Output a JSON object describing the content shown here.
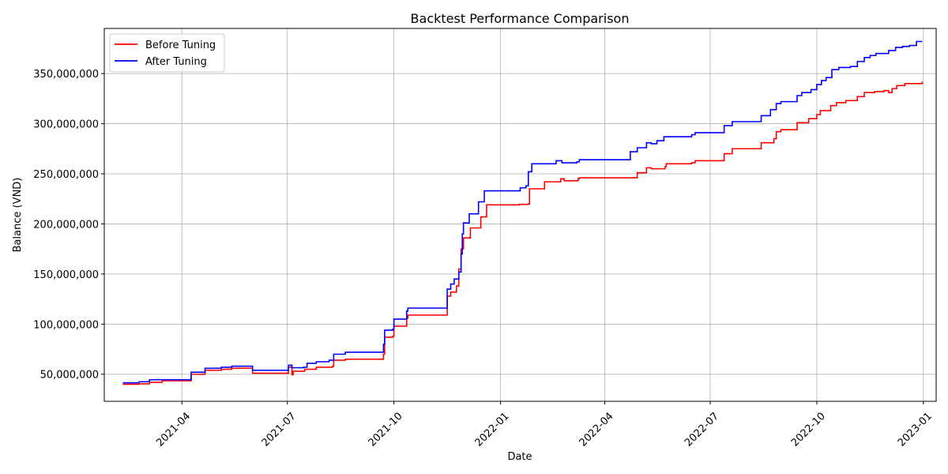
{
  "chart_data": {
    "type": "line",
    "title": "Backtest Performance Comparison",
    "xlabel": "Date",
    "ylabel": "Balance (VND)",
    "grid": true,
    "legend_position": "top-left",
    "xlim": [
      "2021-01-24",
      "2023-01-12"
    ],
    "ylim": [
      23000000,
      395000000
    ],
    "x_ticks": [
      "2021-04-01",
      "2021-07-01",
      "2021-10-01",
      "2022-01-01",
      "2022-04-01",
      "2022-07-01",
      "2022-10-01",
      "2023-01-01"
    ],
    "x_tick_labels": [
      "2021-04",
      "2021-07",
      "2021-10",
      "2022-01",
      "2022-04",
      "2022-07",
      "2022-10",
      "2023-01"
    ],
    "y_ticks": [
      50000000,
      100000000,
      150000000,
      200000000,
      250000000,
      300000000,
      350000000
    ],
    "y_tick_labels": [
      "50,000,000",
      "100,000,000",
      "150,000,000",
      "200,000,000",
      "250,000,000",
      "300,000,000",
      "350,000,000"
    ],
    "series": [
      {
        "name": "Before Tuning",
        "color": "#ff0000",
        "points": [
          [
            "2021-02-09",
            40000000
          ],
          [
            "2021-02-23",
            40500000
          ],
          [
            "2021-03-04",
            42000000
          ],
          [
            "2021-03-15",
            43500000
          ],
          [
            "2021-04-08",
            43500000
          ],
          [
            "2021-04-09",
            50000000
          ],
          [
            "2021-04-21",
            54000000
          ],
          [
            "2021-05-05",
            55000000
          ],
          [
            "2021-05-14",
            56000000
          ],
          [
            "2021-05-31",
            56000000
          ],
          [
            "2021-06-01",
            51000000
          ],
          [
            "2021-07-01",
            51000000
          ],
          [
            "2021-07-02",
            57000000
          ],
          [
            "2021-07-05",
            49500000
          ],
          [
            "2021-07-06",
            53000000
          ],
          [
            "2021-07-15",
            53000000
          ],
          [
            "2021-07-16",
            55000000
          ],
          [
            "2021-07-26",
            57000000
          ],
          [
            "2021-08-09",
            58000000
          ],
          [
            "2021-08-10",
            64000000
          ],
          [
            "2021-08-20",
            65000000
          ],
          [
            "2021-09-20",
            65000000
          ],
          [
            "2021-09-22",
            70000000
          ],
          [
            "2021-09-23",
            87000000
          ],
          [
            "2021-09-30",
            88000000
          ],
          [
            "2021-10-01",
            98000000
          ],
          [
            "2021-10-11",
            98000000
          ],
          [
            "2021-10-12",
            106000000
          ],
          [
            "2021-10-13",
            109000000
          ],
          [
            "2021-11-15",
            109000000
          ],
          [
            "2021-11-16",
            128000000
          ],
          [
            "2021-11-19",
            132000000
          ],
          [
            "2021-11-24",
            138000000
          ],
          [
            "2021-11-26",
            155000000
          ],
          [
            "2021-11-28",
            175000000
          ],
          [
            "2021-11-30",
            186000000
          ],
          [
            "2021-12-06",
            196000000
          ],
          [
            "2021-12-15",
            207000000
          ],
          [
            "2021-12-20",
            219000000
          ],
          [
            "2022-01-17",
            219500000
          ],
          [
            "2022-01-25",
            220000000
          ],
          [
            "2022-01-26",
            235000000
          ],
          [
            "2022-02-08",
            242000000
          ],
          [
            "2022-02-22",
            245000000
          ],
          [
            "2022-02-25",
            243000000
          ],
          [
            "2022-03-09",
            245000000
          ],
          [
            "2022-03-10",
            246000000
          ],
          [
            "2022-04-22",
            246000000
          ],
          [
            "2022-04-29",
            251000000
          ],
          [
            "2022-05-07",
            256000000
          ],
          [
            "2022-05-11",
            255000000
          ],
          [
            "2022-05-23",
            257000000
          ],
          [
            "2022-05-24",
            260000000
          ],
          [
            "2022-06-15",
            261000000
          ],
          [
            "2022-06-18",
            263000000
          ],
          [
            "2022-07-12",
            263000000
          ],
          [
            "2022-07-13",
            270000000
          ],
          [
            "2022-07-20",
            275000000
          ],
          [
            "2022-08-13",
            275000000
          ],
          [
            "2022-08-14",
            281000000
          ],
          [
            "2022-08-25",
            285000000
          ],
          [
            "2022-08-27",
            292000000
          ],
          [
            "2022-08-31",
            294000000
          ],
          [
            "2022-09-13",
            294000000
          ],
          [
            "2022-09-14",
            301000000
          ],
          [
            "2022-09-24",
            305000000
          ],
          [
            "2022-10-01",
            309000000
          ],
          [
            "2022-10-04",
            313000000
          ],
          [
            "2022-10-13",
            318000000
          ],
          [
            "2022-10-18",
            321000000
          ],
          [
            "2022-10-26",
            323000000
          ],
          [
            "2022-11-05",
            327000000
          ],
          [
            "2022-11-11",
            331000000
          ],
          [
            "2022-11-20",
            332000000
          ],
          [
            "2022-11-28",
            333000000
          ],
          [
            "2022-12-02",
            331000000
          ],
          [
            "2022-12-05",
            335000000
          ],
          [
            "2022-12-09",
            338000000
          ],
          [
            "2022-12-16",
            340000000
          ],
          [
            "2022-12-31",
            342000000
          ]
        ]
      },
      {
        "name": "After Tuning",
        "color": "#0000ff",
        "points": [
          [
            "2021-02-09",
            41500000
          ],
          [
            "2021-02-23",
            42500000
          ],
          [
            "2021-03-04",
            44500000
          ],
          [
            "2021-04-08",
            44500000
          ],
          [
            "2021-04-09",
            52000000
          ],
          [
            "2021-04-21",
            56000000
          ],
          [
            "2021-05-05",
            57000000
          ],
          [
            "2021-05-14",
            58000000
          ],
          [
            "2021-05-31",
            58000000
          ],
          [
            "2021-06-01",
            54000000
          ],
          [
            "2021-06-10",
            54000000
          ],
          [
            "2021-07-01",
            54000000
          ],
          [
            "2021-07-02",
            59000000
          ],
          [
            "2021-07-05",
            56500000
          ],
          [
            "2021-07-15",
            57000000
          ],
          [
            "2021-07-18",
            61000000
          ],
          [
            "2021-07-26",
            62500000
          ],
          [
            "2021-08-06",
            64000000
          ],
          [
            "2021-08-09",
            64000000
          ],
          [
            "2021-08-10",
            70000000
          ],
          [
            "2021-08-20",
            72000000
          ],
          [
            "2021-09-20",
            72000000
          ],
          [
            "2021-09-22",
            80000000
          ],
          [
            "2021-09-23",
            94000000
          ],
          [
            "2021-09-30",
            95000000
          ],
          [
            "2021-10-01",
            105000000
          ],
          [
            "2021-10-11",
            105000000
          ],
          [
            "2021-10-12",
            113000000
          ],
          [
            "2021-10-13",
            116000000
          ],
          [
            "2021-11-15",
            116000000
          ],
          [
            "2021-11-16",
            135000000
          ],
          [
            "2021-11-19",
            140000000
          ],
          [
            "2021-11-22",
            145000000
          ],
          [
            "2021-11-26",
            152000000
          ],
          [
            "2021-11-28",
            170000000
          ],
          [
            "2021-11-29",
            190000000
          ],
          [
            "2021-11-30",
            201000000
          ],
          [
            "2021-12-05",
            210000000
          ],
          [
            "2021-12-13",
            222000000
          ],
          [
            "2021-12-18",
            233000000
          ],
          [
            "2022-01-18",
            236000000
          ],
          [
            "2022-01-23",
            238000000
          ],
          [
            "2022-01-25",
            252000000
          ],
          [
            "2022-01-28",
            260000000
          ],
          [
            "2022-02-18",
            263000000
          ],
          [
            "2022-02-23",
            261000000
          ],
          [
            "2022-03-08",
            262000000
          ],
          [
            "2022-03-10",
            264000000
          ],
          [
            "2022-04-22",
            264000000
          ],
          [
            "2022-04-23",
            272000000
          ],
          [
            "2022-04-29",
            276000000
          ],
          [
            "2022-05-07",
            281000000
          ],
          [
            "2022-05-11",
            280000000
          ],
          [
            "2022-05-16",
            283000000
          ],
          [
            "2022-05-22",
            287000000
          ],
          [
            "2022-06-12",
            287000000
          ],
          [
            "2022-06-15",
            289000000
          ],
          [
            "2022-06-18",
            291000000
          ],
          [
            "2022-07-12",
            291000000
          ],
          [
            "2022-07-13",
            298000000
          ],
          [
            "2022-07-20",
            302000000
          ],
          [
            "2022-08-13",
            302000000
          ],
          [
            "2022-08-14",
            308000000
          ],
          [
            "2022-08-22",
            314000000
          ],
          [
            "2022-08-27",
            320000000
          ],
          [
            "2022-08-31",
            322000000
          ],
          [
            "2022-09-13",
            322000000
          ],
          [
            "2022-09-14",
            328000000
          ],
          [
            "2022-09-18",
            331000000
          ],
          [
            "2022-09-26",
            334000000
          ],
          [
            "2022-10-01",
            339000000
          ],
          [
            "2022-10-05",
            343000000
          ],
          [
            "2022-10-09",
            346000000
          ],
          [
            "2022-10-14",
            354000000
          ],
          [
            "2022-10-20",
            356000000
          ],
          [
            "2022-10-30",
            357000000
          ],
          [
            "2022-11-05",
            362000000
          ],
          [
            "2022-11-11",
            366000000
          ],
          [
            "2022-11-16",
            368000000
          ],
          [
            "2022-11-21",
            370000000
          ],
          [
            "2022-11-28",
            370000000
          ],
          [
            "2022-12-02",
            373000000
          ],
          [
            "2022-12-08",
            376000000
          ],
          [
            "2022-12-14",
            377000000
          ],
          [
            "2022-12-20",
            378000000
          ],
          [
            "2022-12-26",
            382000000
          ],
          [
            "2022-12-31",
            382000000
          ]
        ]
      }
    ]
  }
}
